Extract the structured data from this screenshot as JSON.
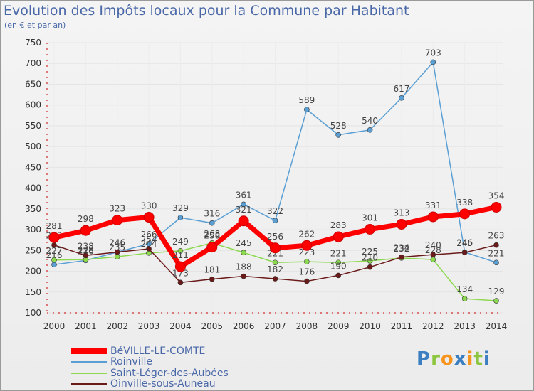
{
  "chart_data": {
    "type": "line",
    "title": "Evolution des Impôts locaux pour la Commune par Habitant",
    "subtitle": "(en € et par an)",
    "x": [
      "2000",
      "2001",
      "2002",
      "2003",
      "2004",
      "2005",
      "2006",
      "2007",
      "2008",
      "2009",
      "2010",
      "2011",
      "2012",
      "2013",
      "2014"
    ],
    "ylim": [
      100,
      750
    ],
    "yticks": [
      100,
      150,
      200,
      250,
      300,
      350,
      400,
      450,
      500,
      550,
      600,
      650,
      700,
      750
    ],
    "grid": true,
    "legend_position": "bottom-left",
    "series": [
      {
        "name": "BéVILLE-LE-COMTE",
        "color": "#ff0000",
        "values": [
          281,
          298,
          323,
          330,
          211,
          258,
          321,
          256,
          262,
          283,
          301,
          313,
          331,
          338,
          354
        ]
      },
      {
        "name": "Roinville",
        "color": "#5a9fd4",
        "values": [
          216,
          226,
          246,
          266,
          329,
          316,
          361,
          322,
          589,
          528,
          540,
          617,
          703,
          246,
          221
        ]
      },
      {
        "name": "Saint-Léger-des-Aubées",
        "color": "#8cd94f",
        "values": [
          227,
          228,
          235,
          244,
          249,
          268,
          245,
          221,
          223,
          221,
          225,
          232,
          228,
          134,
          129
        ]
      },
      {
        "name": "Oinville-sous-Auneau",
        "color": "#6b1a1a",
        "values": [
          263,
          238,
          246,
          254,
          173,
          181,
          188,
          182,
          176,
          190,
          210,
          234,
          240,
          245,
          263
        ]
      }
    ]
  },
  "logo": {
    "p": "P",
    "r": "r",
    "o": "o",
    "x": "x",
    "i1": "i",
    "t": "t",
    "i2": "i"
  }
}
